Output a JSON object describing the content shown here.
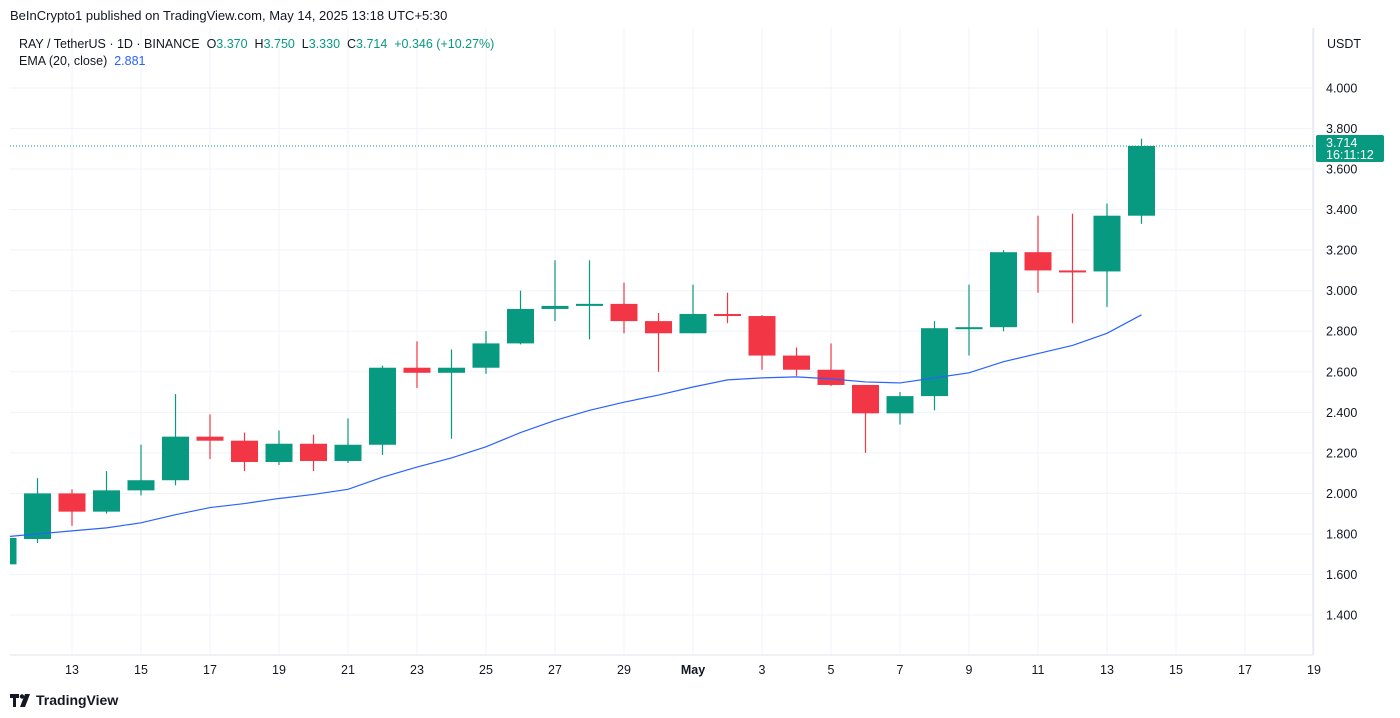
{
  "header": {
    "published": "BeInCrypto1 published on TradingView.com, May 14, 2025 13:18 UTC+5:30",
    "symbol": "RAY / TetherUS · 1D · BINANCE",
    "o_label": "O",
    "o": "3.370",
    "h_label": "H",
    "h": "3.750",
    "l_label": "L",
    "l": "3.330",
    "c_label": "C",
    "c": "3.714",
    "change": "+0.346 (+10.27%)",
    "ema_label": "EMA (20, close)",
    "ema_value": "2.881"
  },
  "price_axis": {
    "unit": "USDT",
    "current_price": "3.714",
    "countdown": "16:11:12"
  },
  "footer": {
    "brand": "TradingView"
  },
  "colors": {
    "up": "#089981",
    "down": "#f23645",
    "ema": "#2962ff",
    "grid": "#f0f3fa"
  },
  "chart_data": {
    "type": "candlestick",
    "ylim": [
      1.2,
      4.2
    ],
    "y_ticks": [
      "1.400",
      "1.600",
      "1.800",
      "2.000",
      "2.200",
      "2.400",
      "2.600",
      "2.800",
      "3.000",
      "3.200",
      "3.400",
      "3.600",
      "3.800",
      "4.000"
    ],
    "x_ticks": [
      "13",
      "15",
      "17",
      "19",
      "21",
      "23",
      "25",
      "27",
      "29",
      "May",
      "3",
      "5",
      "7",
      "9",
      "11",
      "13",
      "15",
      "17",
      "19"
    ],
    "grid": true,
    "candles": [
      {
        "date": "2025-04-11",
        "o": 1.65,
        "h": 1.78,
        "l": 1.64,
        "c": 1.78
      },
      {
        "date": "2025-04-12",
        "o": 1.775,
        "h": 2.075,
        "l": 1.755,
        "c": 2.0
      },
      {
        "date": "2025-04-13",
        "o": 2.0,
        "h": 2.02,
        "l": 1.84,
        "c": 1.91
      },
      {
        "date": "2025-04-14",
        "o": 1.91,
        "h": 2.11,
        "l": 1.9,
        "c": 2.015
      },
      {
        "date": "2025-04-15",
        "o": 2.015,
        "h": 2.24,
        "l": 1.99,
        "c": 2.065
      },
      {
        "date": "2025-04-16",
        "o": 2.065,
        "h": 2.49,
        "l": 2.04,
        "c": 2.28
      },
      {
        "date": "2025-04-17",
        "o": 2.28,
        "h": 2.39,
        "l": 2.17,
        "c": 2.26
      },
      {
        "date": "2025-04-18",
        "o": 2.26,
        "h": 2.3,
        "l": 2.11,
        "c": 2.155
      },
      {
        "date": "2025-04-19",
        "o": 2.155,
        "h": 2.31,
        "l": 2.14,
        "c": 2.245
      },
      {
        "date": "2025-04-20",
        "o": 2.245,
        "h": 2.29,
        "l": 2.11,
        "c": 2.16
      },
      {
        "date": "2025-04-21",
        "o": 2.16,
        "h": 2.37,
        "l": 2.15,
        "c": 2.24
      },
      {
        "date": "2025-04-22",
        "o": 2.24,
        "h": 2.63,
        "l": 2.19,
        "c": 2.62
      },
      {
        "date": "2025-04-23",
        "o": 2.62,
        "h": 2.75,
        "l": 2.52,
        "c": 2.595
      },
      {
        "date": "2025-04-24",
        "o": 2.595,
        "h": 2.71,
        "l": 2.27,
        "c": 2.62
      },
      {
        "date": "2025-04-25",
        "o": 2.62,
        "h": 2.8,
        "l": 2.59,
        "c": 2.74
      },
      {
        "date": "2025-04-26",
        "o": 2.74,
        "h": 3.0,
        "l": 2.735,
        "c": 2.91
      },
      {
        "date": "2025-04-27",
        "o": 2.91,
        "h": 3.15,
        "l": 2.85,
        "c": 2.925
      },
      {
        "date": "2025-04-28",
        "o": 2.925,
        "h": 3.15,
        "l": 2.76,
        "c": 2.935
      },
      {
        "date": "2025-04-29",
        "o": 2.935,
        "h": 3.04,
        "l": 2.79,
        "c": 2.85
      },
      {
        "date": "2025-04-30",
        "o": 2.85,
        "h": 2.89,
        "l": 2.6,
        "c": 2.79
      },
      {
        "date": "2025-05-01",
        "o": 2.79,
        "h": 3.03,
        "l": 2.79,
        "c": 2.885
      },
      {
        "date": "2025-05-02",
        "o": 2.885,
        "h": 2.99,
        "l": 2.84,
        "c": 2.875
      },
      {
        "date": "2025-05-03",
        "o": 2.875,
        "h": 2.88,
        "l": 2.61,
        "c": 2.68
      },
      {
        "date": "2025-05-04",
        "o": 2.68,
        "h": 2.72,
        "l": 2.58,
        "c": 2.61
      },
      {
        "date": "2025-05-05",
        "o": 2.61,
        "h": 2.74,
        "l": 2.53,
        "c": 2.535
      },
      {
        "date": "2025-05-06",
        "o": 2.535,
        "h": 2.535,
        "l": 2.2,
        "c": 2.395
      },
      {
        "date": "2025-05-07",
        "o": 2.395,
        "h": 2.5,
        "l": 2.34,
        "c": 2.48
      },
      {
        "date": "2025-05-08",
        "o": 2.48,
        "h": 2.85,
        "l": 2.41,
        "c": 2.815
      },
      {
        "date": "2025-05-09",
        "o": 2.815,
        "h": 3.03,
        "l": 2.68,
        "c": 2.82
      },
      {
        "date": "2025-05-10",
        "o": 2.82,
        "h": 3.2,
        "l": 2.8,
        "c": 3.19
      },
      {
        "date": "2025-05-11",
        "o": 3.19,
        "h": 3.37,
        "l": 2.99,
        "c": 3.1
      },
      {
        "date": "2025-05-12",
        "o": 3.1,
        "h": 3.38,
        "l": 2.84,
        "c": 3.095
      },
      {
        "date": "2025-05-13",
        "o": 3.095,
        "h": 3.43,
        "l": 2.92,
        "c": 3.37
      },
      {
        "date": "2025-05-14",
        "o": 3.37,
        "h": 3.75,
        "l": 3.33,
        "c": 3.714
      }
    ],
    "ema": [
      1.785,
      1.8,
      1.815,
      1.83,
      1.855,
      1.895,
      1.93,
      1.95,
      1.975,
      1.995,
      2.02,
      2.08,
      2.13,
      2.175,
      2.23,
      2.3,
      2.36,
      2.41,
      2.45,
      2.485,
      2.525,
      2.56,
      2.57,
      2.575,
      2.565,
      2.55,
      2.545,
      2.57,
      2.595,
      2.65,
      2.69,
      2.73,
      2.79,
      2.881
    ]
  }
}
